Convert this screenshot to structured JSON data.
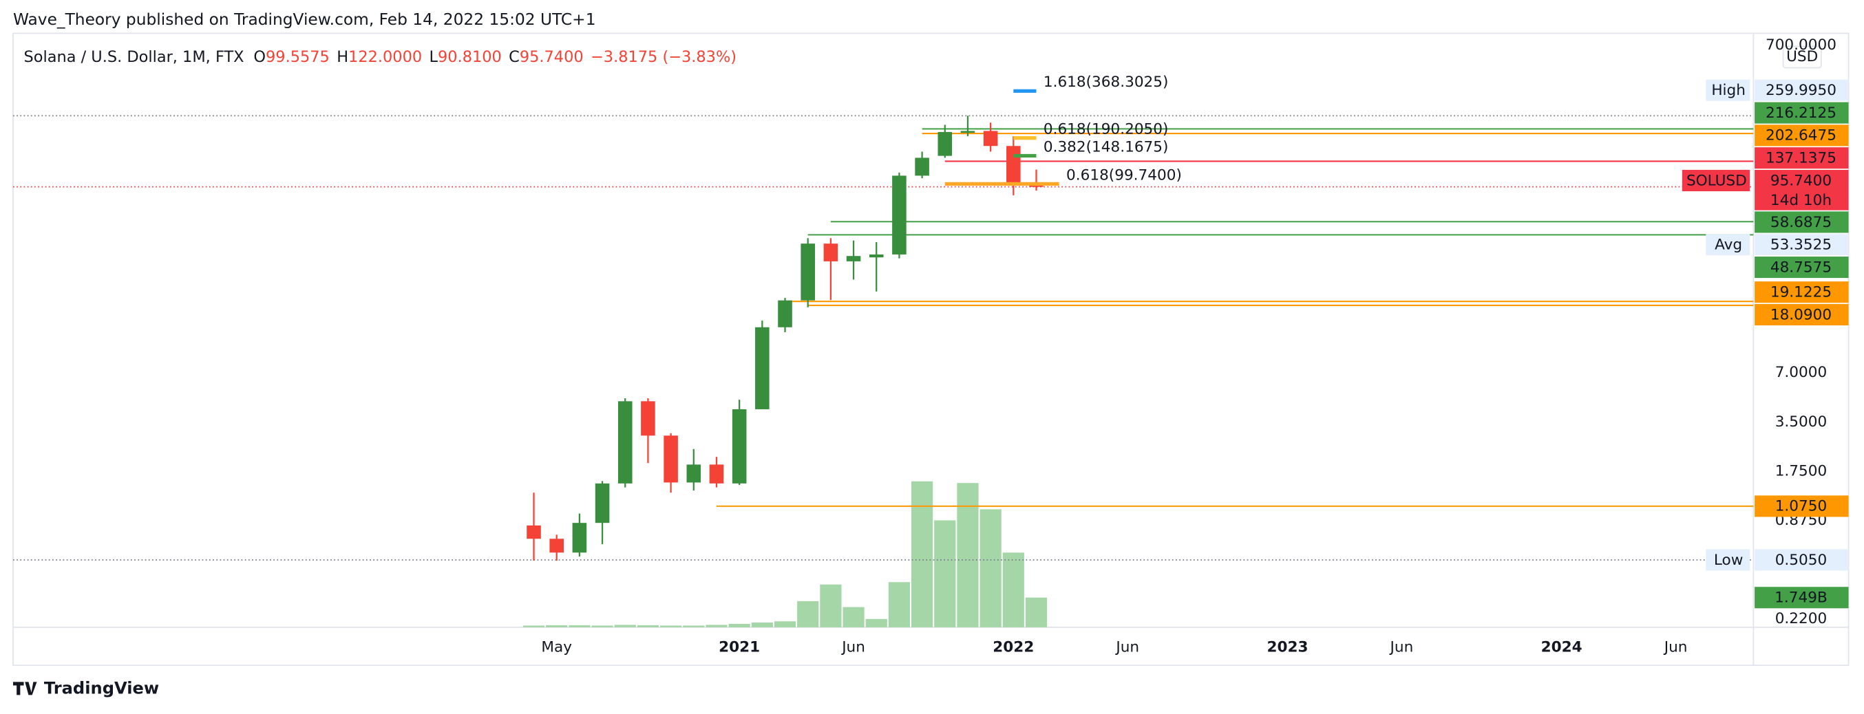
{
  "header": {
    "publisher": "Wave_Theory published on TradingView.com, Feb 14, 2022 15:02 UTC+1",
    "brand": "TradingView"
  },
  "chart_data": {
    "type": "candlestick",
    "title": "Solana / U.S. Dollar, 1M, FTX",
    "ohlc_legend": [
      {
        "key": "O",
        "value": "99.5575"
      },
      {
        "key": "H",
        "value": "122.0000"
      },
      {
        "key": "L",
        "value": "90.8100"
      },
      {
        "key": "C",
        "value": "95.7400"
      }
    ],
    "change": "−3.8175 (−3.83%)",
    "currency": "USD",
    "x": [
      0,
      1,
      2,
      3,
      4,
      5,
      6,
      7,
      8,
      9,
      10,
      11,
      12,
      13,
      14,
      15,
      16,
      17,
      18,
      19,
      20,
      21,
      22
    ],
    "open": [
      0.82,
      0.68,
      0.56,
      0.85,
      1.48,
      4.7,
      2.9,
      1.5,
      1.93,
      1.48,
      4.2,
      13.3,
      19.4,
      43.1,
      33.6,
      35.5,
      37,
      112,
      148,
      207,
      210,
      170,
      99.5575
    ],
    "high": [
      1.3,
      0.72,
      0.97,
      1.53,
      4.9,
      4.9,
      3.0,
      2.4,
      2.15,
      4.8,
      14.6,
      20.1,
      46.5,
      46.5,
      45,
      44,
      117,
      157,
      229,
      260,
      236,
      195,
      122
    ],
    "low": [
      0.5,
      0.5,
      0.53,
      0.63,
      1.4,
      1.97,
      1.3,
      1.34,
      1.4,
      1.45,
      4.2,
      12.4,
      17.6,
      19.5,
      26,
      22,
      35,
      108,
      144,
      195,
      157,
      85,
      90.81
    ],
    "close": [
      0.68,
      0.56,
      0.85,
      1.48,
      4.7,
      2.9,
      1.5,
      1.93,
      1.48,
      4.2,
      13.3,
      19.4,
      43.1,
      33.6,
      36.2,
      37,
      112,
      144,
      207,
      210,
      170,
      102,
      95.74
    ],
    "up_color": "#388e3c",
    "down_color": "#f44336",
    "volume": {
      "values": [
        0.1,
        0.12,
        0.12,
        0.1,
        0.14,
        0.12,
        0.1,
        0.1,
        0.14,
        0.2,
        0.28,
        0.35,
        1.54,
        2.52,
        1.19,
        0.49,
        2.66,
        8.6,
        6.3,
        8.5,
        6.95,
        4.4,
        1.749
      ],
      "color": "#a5d6a7",
      "ylim": [
        0,
        35
      ],
      "last_label": "1.749B",
      "last_color": "#43a047"
    },
    "xlim": [
      -22.8,
      53.4
    ],
    "xticks": [
      {
        "value": 1,
        "label": "May"
      },
      {
        "value": 9,
        "label": "2021"
      },
      {
        "value": 14,
        "label": "Jun"
      },
      {
        "value": 21,
        "label": "2022"
      },
      {
        "value": 26,
        "label": "Jun"
      },
      {
        "value": 33,
        "label": "2023"
      },
      {
        "value": 38,
        "label": "Jun"
      },
      {
        "value": 45,
        "label": "2024"
      },
      {
        "value": 50,
        "label": "Jun"
      }
    ],
    "ylim": [
      0.196,
      829
    ],
    "log_scale": true,
    "yticks": [
      {
        "value": 0.22,
        "label": "0.2200"
      },
      {
        "value": 0.875,
        "label": "0.8750"
      },
      {
        "value": 1.75,
        "label": "1.7500"
      },
      {
        "value": 3.5,
        "label": "3.5000"
      },
      {
        "value": 7,
        "label": "7.0000"
      },
      {
        "value": 700,
        "label": "700.0000"
      }
    ],
    "price_lines": [
      {
        "value": 216.2125,
        "label": "216.2125",
        "color": "#43a047",
        "from": 17
      },
      {
        "value": 202.6475,
        "label": "202.6475",
        "color": "#ff9800",
        "from": 17
      },
      {
        "value": 137.1375,
        "label": "137.1375",
        "color": "#f23645",
        "from": 18
      },
      {
        "value": 58.6875,
        "label": "58.6875",
        "color": "#43a047",
        "from": 13
      },
      {
        "value": 48.7575,
        "label": "48.7575",
        "color": "#43a047",
        "from": 12
      },
      {
        "value": 19.1225,
        "label": "19.1225",
        "color": "#ff9800",
        "from": 11
      },
      {
        "value": 18.09,
        "label": "18.0900",
        "color": "#ff9800",
        "from": 12
      },
      {
        "value": 1.075,
        "label": "1.0750",
        "color": "#ff9800",
        "from": 8
      }
    ],
    "markers": [
      {
        "tag": "High",
        "value": 259.995,
        "label": "259.9950"
      },
      {
        "tag": "Avg",
        "value": 53.3525,
        "label": "53.3525"
      },
      {
        "tag": "Low",
        "value": 0.505,
        "label": "0.5050"
      }
    ],
    "last_price": {
      "tag": "SOLUSD",
      "value": 95.74,
      "label": "95.7400",
      "countdown": "14d 10h",
      "color": "#f23645"
    },
    "fib_levels": [
      {
        "label": "1.618(368.3025)",
        "value": 368.3025,
        "color": "#2196f3",
        "from": 21,
        "to": 22
      },
      {
        "label": "0.618(190.2050)",
        "value": 190.205,
        "color": "#fbc02d",
        "from": 21,
        "to": 22
      },
      {
        "label": "0.382(148.1675)",
        "value": 148.1675,
        "color": "#43a047",
        "from": 21,
        "to": 22
      },
      {
        "label": "0.618(99.7400)",
        "value": 99.74,
        "color": "#ffa726",
        "from": 18,
        "to": 23
      }
    ]
  }
}
